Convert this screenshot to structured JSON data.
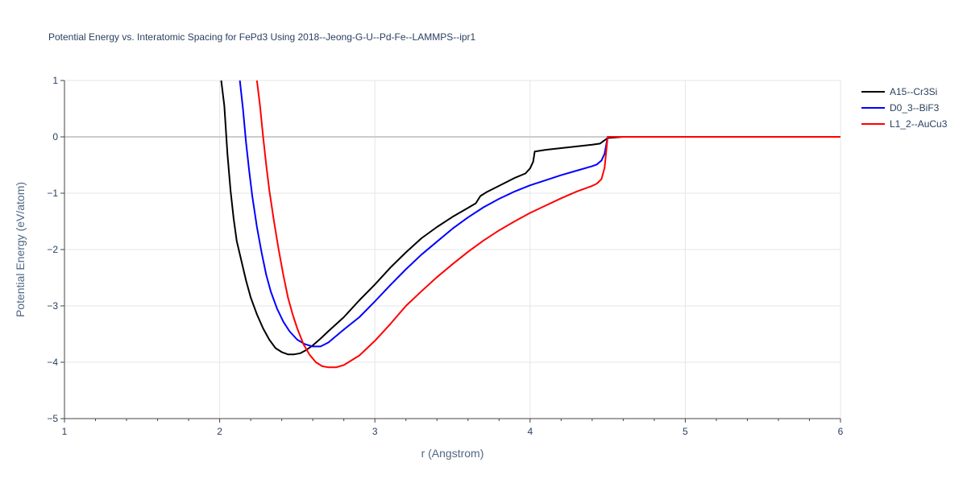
{
  "chart_data": {
    "type": "line",
    "title": "Potential Energy vs. Interatomic Spacing for FePd3 Using 2018--Jeong-G-U--Pd-Fe--LAMMPS--ipr1",
    "xlabel": "r (Angstrom)",
    "ylabel": "Potential Energy (eV/atom)",
    "xlim": [
      1,
      6
    ],
    "ylim": [
      -5,
      1
    ],
    "xticks": [
      1,
      2,
      3,
      4,
      5,
      6
    ],
    "yticks": [
      1,
      0,
      -1,
      -2,
      -3,
      -4,
      -5
    ],
    "xtick_labels": [
      "1",
      "2",
      "3",
      "4",
      "5",
      "6"
    ],
    "ytick_labels": [
      "1",
      "0",
      "−1",
      "−2",
      "−3",
      "−4",
      "−5"
    ],
    "grid": true,
    "legend_position": "top-right",
    "series": [
      {
        "name": "A15--Cr3Si",
        "color": "#000000",
        "x": [
          2.01,
          2.03,
          2.05,
          2.07,
          2.09,
          2.11,
          2.14,
          2.17,
          2.2,
          2.24,
          2.28,
          2.32,
          2.36,
          2.4,
          2.44,
          2.48,
          2.52,
          2.56,
          2.6,
          2.65,
          2.7,
          2.8,
          2.9,
          3.0,
          3.1,
          3.2,
          3.3,
          3.4,
          3.5,
          3.6,
          3.65,
          3.68,
          3.72,
          3.8,
          3.9,
          3.97,
          4.0,
          4.02,
          4.03,
          4.1,
          4.2,
          4.3,
          4.4,
          4.45,
          4.5,
          4.6,
          5.0,
          5.5,
          6.0
        ],
        "y": [
          1.0,
          0.55,
          -0.3,
          -0.95,
          -1.45,
          -1.85,
          -2.2,
          -2.55,
          -2.85,
          -3.15,
          -3.4,
          -3.6,
          -3.75,
          -3.82,
          -3.86,
          -3.86,
          -3.84,
          -3.78,
          -3.7,
          -3.58,
          -3.45,
          -3.2,
          -2.9,
          -2.62,
          -2.32,
          -2.05,
          -1.8,
          -1.6,
          -1.42,
          -1.26,
          -1.18,
          -1.05,
          -0.98,
          -0.87,
          -0.73,
          -0.65,
          -0.56,
          -0.44,
          -0.26,
          -0.23,
          -0.2,
          -0.17,
          -0.14,
          -0.12,
          -0.02,
          0.0,
          0.0,
          0.0,
          0.0
        ],
        "dash": "solid"
      },
      {
        "name": "D0_3--BiF3",
        "color": "#0000ff",
        "x": [
          2.13,
          2.15,
          2.17,
          2.19,
          2.21,
          2.24,
          2.27,
          2.3,
          2.33,
          2.37,
          2.41,
          2.45,
          2.5,
          2.55,
          2.6,
          2.65,
          2.7,
          2.8,
          2.9,
          3.0,
          3.1,
          3.2,
          3.3,
          3.4,
          3.5,
          3.6,
          3.7,
          3.8,
          3.9,
          4.0,
          4.1,
          4.2,
          4.3,
          4.4,
          4.43,
          4.46,
          4.48,
          4.5,
          4.6,
          5.0,
          5.5,
          6.0
        ],
        "y": [
          1.0,
          0.5,
          -0.1,
          -0.6,
          -1.05,
          -1.6,
          -2.05,
          -2.45,
          -2.75,
          -3.05,
          -3.28,
          -3.45,
          -3.6,
          -3.68,
          -3.72,
          -3.72,
          -3.65,
          -3.42,
          -3.2,
          -2.92,
          -2.63,
          -2.35,
          -2.09,
          -1.86,
          -1.63,
          -1.43,
          -1.25,
          -1.1,
          -0.97,
          -0.86,
          -0.77,
          -0.68,
          -0.6,
          -0.52,
          -0.49,
          -0.42,
          -0.3,
          0.0,
          0.0,
          0.0,
          0.0,
          0.0
        ],
        "dash": "solid"
      },
      {
        "name": "L1_2--AuCu3",
        "color": "#ff0000",
        "x": [
          2.24,
          2.26,
          2.28,
          2.3,
          2.32,
          2.35,
          2.38,
          2.41,
          2.44,
          2.47,
          2.5,
          2.54,
          2.58,
          2.62,
          2.66,
          2.7,
          2.75,
          2.8,
          2.9,
          3.0,
          3.1,
          3.2,
          3.3,
          3.4,
          3.5,
          3.6,
          3.7,
          3.8,
          3.9,
          4.0,
          4.1,
          4.2,
          4.3,
          4.4,
          4.43,
          4.46,
          4.48,
          4.5,
          4.6,
          5.0,
          5.5,
          6.0
        ],
        "y": [
          1.0,
          0.55,
          0.0,
          -0.5,
          -0.95,
          -1.5,
          -2.0,
          -2.45,
          -2.85,
          -3.15,
          -3.4,
          -3.68,
          -3.87,
          -4.0,
          -4.07,
          -4.09,
          -4.09,
          -4.05,
          -3.88,
          -3.62,
          -3.32,
          -3.0,
          -2.74,
          -2.49,
          -2.26,
          -2.04,
          -1.84,
          -1.66,
          -1.5,
          -1.35,
          -1.22,
          -1.09,
          -0.97,
          -0.87,
          -0.83,
          -0.75,
          -0.55,
          0.0,
          0.0,
          0.0,
          0.0,
          0.0
        ],
        "dash": "solid"
      }
    ]
  }
}
